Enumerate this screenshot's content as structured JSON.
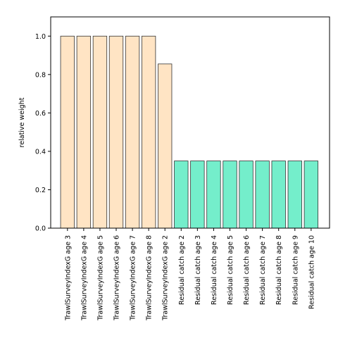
{
  "chart_data": {
    "type": "bar",
    "ylabel": "relative weight",
    "ylim": [
      0,
      1.1
    ],
    "yticks": [
      "0.0",
      "0.2",
      "0.4",
      "0.6",
      "0.8",
      "1.0"
    ],
    "grid": false,
    "categories": [
      "TrawlSurveyIndexG age 3",
      "TrawlSurveyIndexG age 4",
      "TrawlSurveyIndexG age 5",
      "TrawlSurveyIndexG age 6",
      "TrawlSurveyIndexG age 7",
      "TrawlSurveyIndexG age 8",
      "TrawlSurveyIndexG age 2",
      "Residual catch age 2",
      "Residual catch age 3",
      "Residual catch age 4",
      "Residual catch age 5",
      "Residual catch age 6",
      "Residual catch age 7",
      "Residual catch age 8",
      "Residual catch age 9",
      "Residual catch age 10"
    ],
    "values": [
      1.0,
      1.0,
      1.0,
      1.0,
      1.0,
      1.0,
      0.855,
      0.35,
      0.35,
      0.35,
      0.35,
      0.35,
      0.35,
      0.35,
      0.35,
      0.35
    ],
    "bar_colors": [
      "#ffe4c4",
      "#ffe4c4",
      "#ffe4c4",
      "#ffe4c4",
      "#ffe4c4",
      "#ffe4c4",
      "#ffe4c4",
      "#74eecb",
      "#74eecb",
      "#74eecb",
      "#74eecb",
      "#74eecb",
      "#74eecb",
      "#74eecb",
      "#74eecb",
      "#74eecb"
    ],
    "bar_edge_color": "#333333"
  }
}
